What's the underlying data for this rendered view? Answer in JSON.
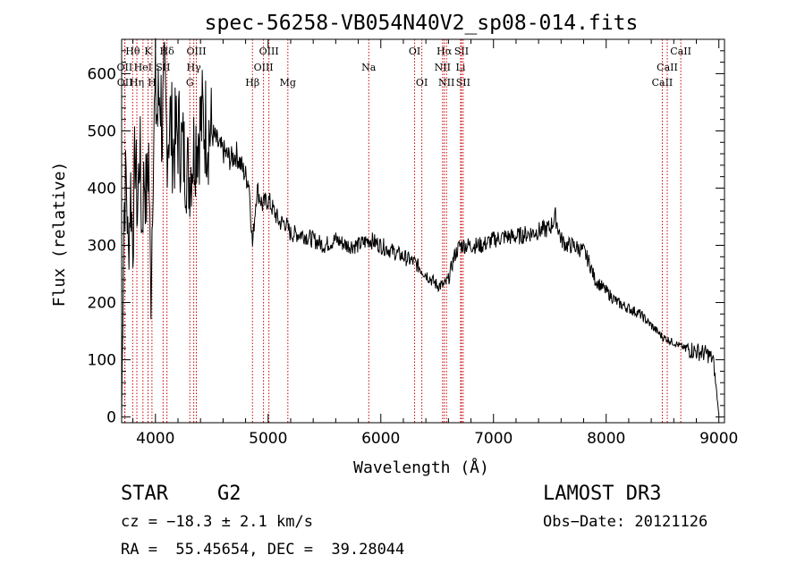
{
  "chart_data": {
    "type": "line",
    "title": "spec-56258-VB054N40V2_sp08-014.fits",
    "xlabel": "Wavelength (Å)",
    "ylabel": "Flux (relative)",
    "xlim": [
      3700,
      9050
    ],
    "ylim": [
      -10,
      660
    ],
    "xticks": [
      4000,
      5000,
      6000,
      7000,
      8000,
      9000
    ],
    "yticks": [
      0,
      100,
      200,
      300,
      400,
      500,
      600
    ],
    "series": [
      {
        "name": "spectrum",
        "x": [
          3700,
          3720,
          3740,
          3760,
          3780,
          3800,
          3820,
          3840,
          3860,
          3880,
          3900,
          3920,
          3940,
          3960,
          3980,
          4000,
          4020,
          4040,
          4060,
          4080,
          4100,
          4130,
          4160,
          4200,
          4250,
          4300,
          4340,
          4380,
          4420,
          4470,
          4520,
          4570,
          4620,
          4670,
          4720,
          4780,
          4830,
          4861,
          4900,
          4950,
          5000,
          5050,
          5100,
          5150,
          5200,
          5300,
          5400,
          5500,
          5600,
          5700,
          5800,
          5900,
          6000,
          6100,
          6200,
          6300,
          6350,
          6400,
          6450,
          6500,
          6563,
          6600,
          6650,
          6700,
          6800,
          6900,
          7000,
          7100,
          7200,
          7300,
          7400,
          7500,
          7550,
          7600,
          7650,
          7700,
          7750,
          7800,
          7850,
          7900,
          8000,
          8100,
          8200,
          8300,
          8400,
          8500,
          8600,
          8700,
          8800,
          8900,
          8950,
          9000
        ],
        "values": [
          0,
          360,
          420,
          280,
          400,
          300,
          470,
          350,
          480,
          320,
          430,
          380,
          460,
          200,
          470,
          560,
          520,
          590,
          500,
          560,
          490,
          520,
          470,
          500,
          460,
          420,
          470,
          500,
          520,
          500,
          490,
          470,
          460,
          450,
          460,
          430,
          410,
          300,
          400,
          370,
          380,
          360,
          340,
          340,
          320,
          320,
          310,
          300,
          310,
          300,
          300,
          310,
          300,
          290,
          280,
          270,
          260,
          250,
          240,
          230,
          230,
          240,
          280,
          300,
          300,
          300,
          310,
          315,
          315,
          320,
          325,
          330,
          350,
          310,
          300,
          300,
          295,
          290,
          270,
          240,
          220,
          200,
          190,
          180,
          160,
          140,
          130,
          120,
          115,
          110,
          100,
          5
        ]
      }
    ],
    "line_markers": [
      {
        "label": "Hθ",
        "wl": 3798,
        "row": 0
      },
      {
        "label": "OII",
        "wl": 3727,
        "row": 1
      },
      {
        "label": "OII",
        "wl": 3729,
        "row": 2
      },
      {
        "label": "K",
        "wl": 3934,
        "row": 0
      },
      {
        "label": "HeI",
        "wl": 3889,
        "row": 1
      },
      {
        "label": "Hη",
        "wl": 3835,
        "row": 2
      },
      {
        "label": "Hδ",
        "wl": 4102,
        "row": 0
      },
      {
        "label": "SII",
        "wl": 4068,
        "row": 1
      },
      {
        "label": "H",
        "wl": 3969,
        "row": 2
      },
      {
        "label": "OIII",
        "wl": 4363,
        "row": 0
      },
      {
        "label": "Hγ",
        "wl": 4340,
        "row": 1
      },
      {
        "label": "G",
        "wl": 4305,
        "row": 2
      },
      {
        "label": "Hβ",
        "wl": 4861,
        "row": 2
      },
      {
        "label": "OIII",
        "wl": 5007,
        "row": 0
      },
      {
        "label": "OIII",
        "wl": 4959,
        "row": 1
      },
      {
        "label": "Mg",
        "wl": 5175,
        "row": 2
      },
      {
        "label": "Na",
        "wl": 5893,
        "row": 1
      },
      {
        "label": "OI",
        "wl": 6300,
        "row": 0
      },
      {
        "label": "OI",
        "wl": 6364,
        "row": 2
      },
      {
        "label": "Hα",
        "wl": 6563,
        "row": 0
      },
      {
        "label": "SII",
        "wl": 6716,
        "row": 0
      },
      {
        "label": "NII",
        "wl": 6548,
        "row": 1
      },
      {
        "label": "Li",
        "wl": 6708,
        "row": 1
      },
      {
        "label": "NII",
        "wl": 6583,
        "row": 2
      },
      {
        "label": "SII",
        "wl": 6731,
        "row": 2
      },
      {
        "label": "CaII",
        "wl": 8662,
        "row": 0
      },
      {
        "label": "CaII",
        "wl": 8542,
        "row": 1
      },
      {
        "label": "CaII",
        "wl": 8498,
        "row": 2
      }
    ],
    "marker_color": "#cc0000"
  },
  "footer": {
    "object_type": "STAR",
    "subclass": "G2",
    "survey": "LAMOST DR3",
    "cz": "cz = −18.3 ± 2.1 km/s",
    "obs_date": "Obs−Date: 20121126",
    "coords": "RA =  55.45654, DEC =  39.28044"
  }
}
